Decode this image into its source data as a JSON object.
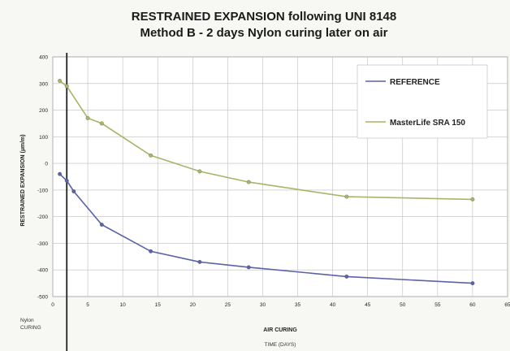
{
  "chart_data": {
    "type": "line",
    "title": "RESTRAINED EXPANSION following  UNI 8148",
    "subtitle": "Method B - 2 days Nylon curing later on air",
    "xlabel": "AIR CURING",
    "xlabel_sub": "TIME (DAYS)",
    "ylabel": "RESTRAINED  EXPANSION (µm/m)",
    "corner_note": [
      "Nylon",
      "CURING"
    ],
    "xlim": [
      0,
      65
    ],
    "ylim": [
      -500,
      400
    ],
    "x_ticks": [
      0,
      5,
      10,
      15,
      20,
      25,
      30,
      35,
      40,
      45,
      50,
      55,
      60,
      65
    ],
    "y_ticks": [
      -500,
      -400,
      -300,
      -200,
      -100,
      0,
      100,
      200,
      300,
      400
    ],
    "marker_line_x": 2,
    "grid": true,
    "legend_position": "top-right",
    "series": [
      {
        "name": "REFERENCE",
        "color": "#5a62a8",
        "x": [
          1,
          2,
          3,
          7,
          14,
          21,
          28,
          42,
          60
        ],
        "y": [
          -40,
          -65,
          -105,
          -230,
          -330,
          -370,
          -390,
          -425,
          -450
        ]
      },
      {
        "name": "MasterLife SRA 150",
        "color": "#a9b46a",
        "x": [
          1,
          2,
          5,
          7,
          14,
          21,
          28,
          42,
          60
        ],
        "y": [
          310,
          290,
          170,
          150,
          30,
          -30,
          -70,
          -125,
          -135
        ]
      }
    ]
  }
}
